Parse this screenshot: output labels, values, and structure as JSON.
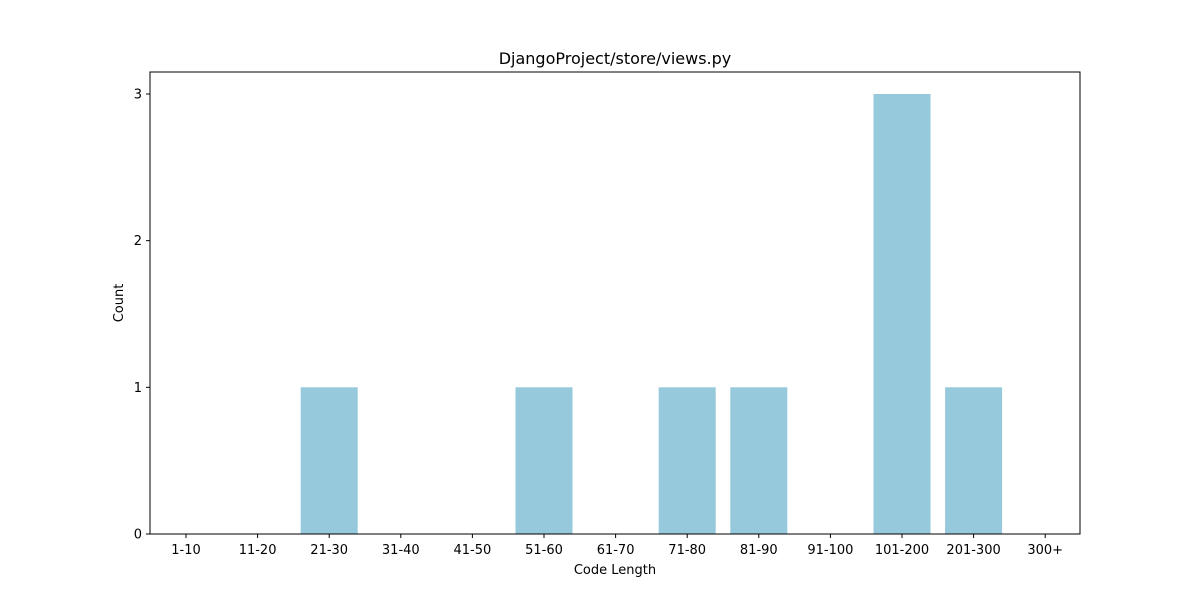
{
  "chart_data": {
    "type": "bar",
    "title": "DjangoProject/store/views.py",
    "xlabel": "Code Length",
    "ylabel": "Count",
    "categories": [
      "1-10",
      "11-20",
      "21-30",
      "31-40",
      "41-50",
      "51-60",
      "61-70",
      "71-80",
      "81-90",
      "91-100",
      "101-200",
      "201-300",
      "300+"
    ],
    "values": [
      0,
      0,
      1,
      0,
      0,
      1,
      0,
      1,
      1,
      0,
      3,
      1,
      0
    ],
    "ylim": [
      0,
      3.15
    ],
    "yticks": [
      0,
      1,
      2,
      3
    ],
    "grid": false,
    "bar_color": "#96c9dc"
  }
}
